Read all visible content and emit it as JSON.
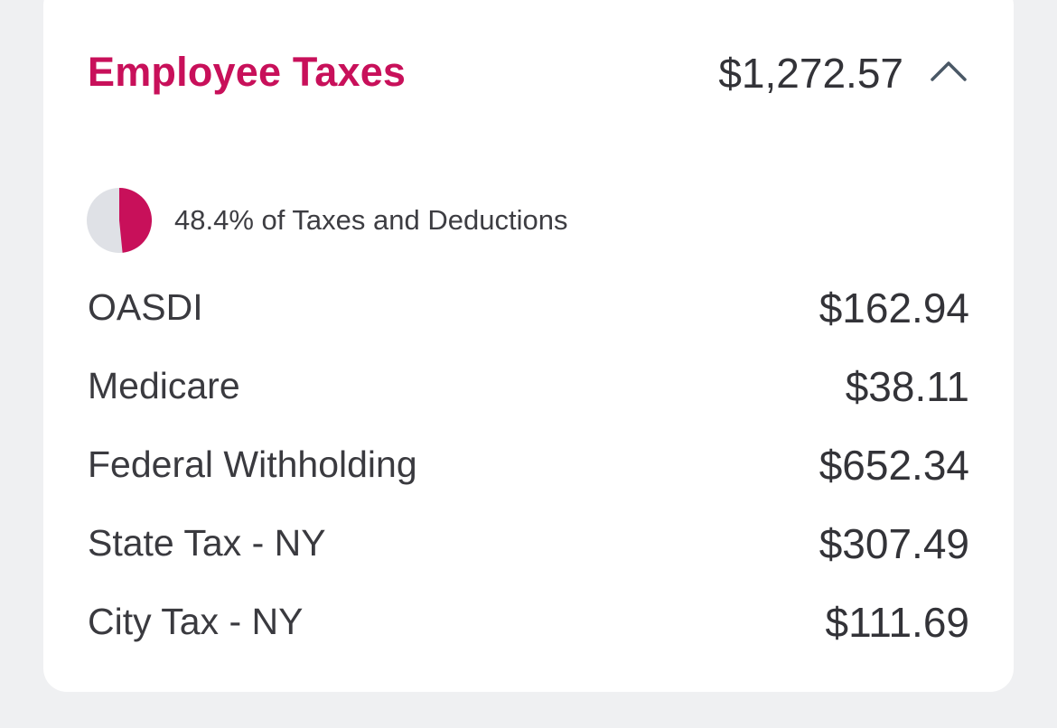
{
  "section": {
    "title": "Employee Taxes",
    "total": "$1,272.57",
    "expanded": true,
    "collapse_icon": "chevron-up-icon"
  },
  "share": {
    "fraction": 0.484,
    "text": "48.4% of Taxes and Deductions",
    "icon": "pie-chart-icon",
    "fill_color": "#c8105a",
    "track_color": "#dfe1e6"
  },
  "items": [
    {
      "label": "OASDI",
      "amount": "$162.94"
    },
    {
      "label": "Medicare",
      "amount": "$38.11"
    },
    {
      "label": "Federal Withholding",
      "amount": "$652.34"
    },
    {
      "label": "State Tax - NY",
      "amount": "$307.49"
    },
    {
      "label": "City Tax - NY",
      "amount": "$111.69"
    }
  ],
  "colors": {
    "accent": "#c8105a",
    "background": "#eff0f2",
    "card": "#ffffff",
    "text": "#333338"
  }
}
